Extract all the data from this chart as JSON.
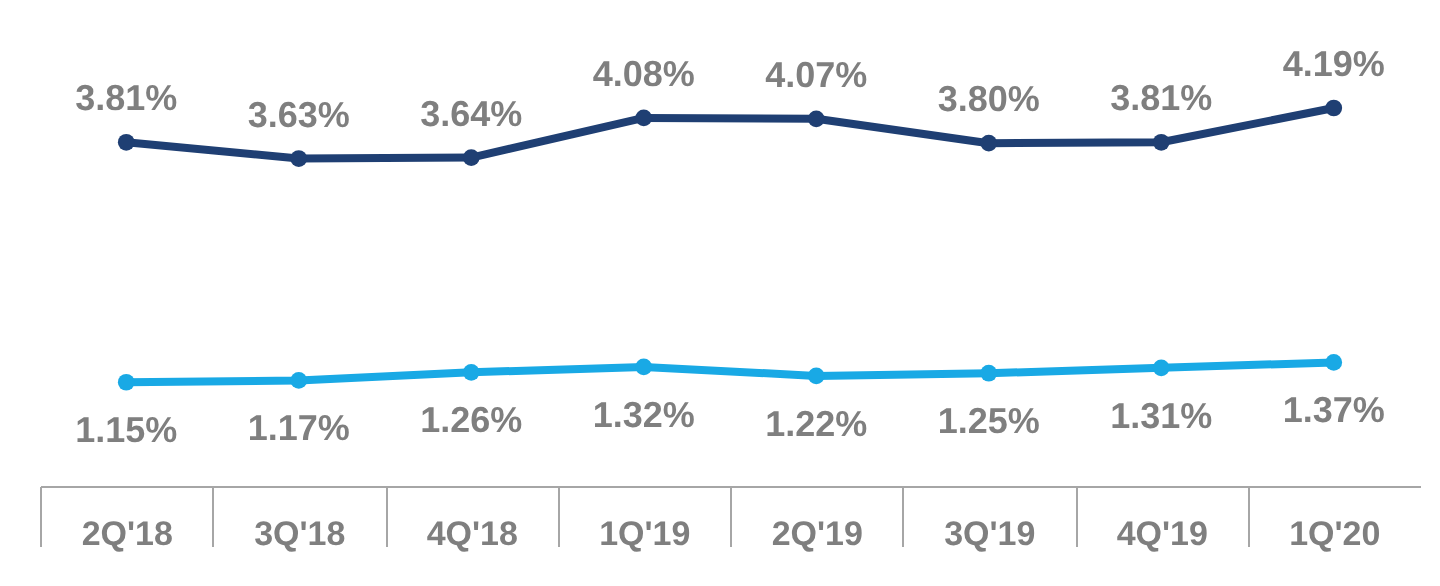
{
  "chart_data": {
    "type": "line",
    "categories": [
      "2Q'18",
      "3Q'18",
      "4Q'18",
      "1Q'19",
      "2Q'19",
      "3Q'19",
      "4Q'19",
      "1Q'20"
    ],
    "series": [
      {
        "color": "#1f3f73",
        "values": [
          3.81,
          3.63,
          3.64,
          4.08,
          4.07,
          3.8,
          3.81,
          4.19
        ],
        "value_labels": [
          "3.81%",
          "3.63%",
          "3.64%",
          "4.08%",
          "4.07%",
          "3.80%",
          "3.81%",
          "4.19%"
        ]
      },
      {
        "color": "#19a9e5",
        "values": [
          1.15,
          1.17,
          1.26,
          1.32,
          1.22,
          1.25,
          1.31,
          1.37
        ],
        "value_labels": [
          "1.15%",
          "1.17%",
          "1.26%",
          "1.32%",
          "1.22%",
          "1.25%",
          "1.31%",
          "1.37%"
        ]
      }
    ],
    "marker": "circle"
  }
}
